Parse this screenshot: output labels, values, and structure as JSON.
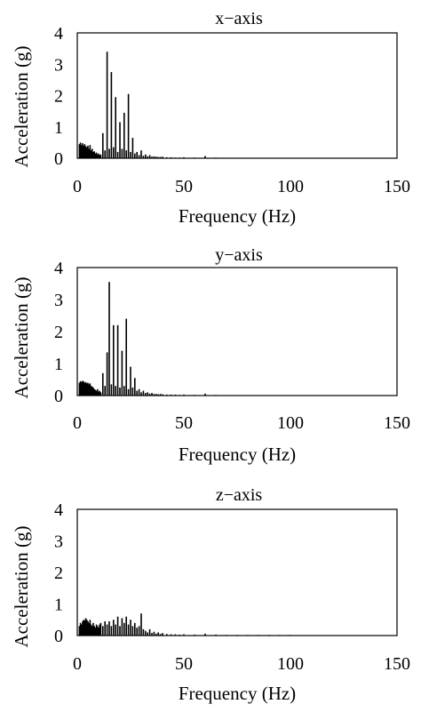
{
  "chart_data": [
    {
      "type": "bar",
      "title": "x−axis",
      "xlabel": "Frequency (Hz)",
      "ylabel": "Acceleration (g)",
      "xlim": [
        0,
        150
      ],
      "ylim": [
        0,
        4
      ],
      "xticks": [
        "0",
        "50",
        "100",
        "150"
      ],
      "yticks": [
        "0",
        "1",
        "2",
        "3",
        "4"
      ],
      "grid": false,
      "color": "#000000",
      "x": [
        1,
        1.5,
        2,
        2.5,
        3,
        3.5,
        4,
        4.5,
        5,
        5.5,
        6,
        6.5,
        7,
        7.5,
        8,
        8.5,
        9,
        9.5,
        10,
        10.5,
        11,
        12,
        13,
        14,
        15,
        16,
        17,
        18,
        19,
        20,
        21,
        22,
        23,
        24,
        25,
        26,
        27,
        28,
        29,
        30,
        31,
        32,
        33,
        34,
        35,
        36,
        37,
        38,
        39,
        40,
        42,
        44,
        46,
        48,
        50,
        55,
        60,
        65,
        70,
        80,
        90,
        100
      ],
      "values": [
        0.45,
        0.5,
        0.42,
        0.48,
        0.4,
        0.45,
        0.38,
        0.35,
        0.4,
        0.3,
        0.42,
        0.25,
        0.3,
        0.2,
        0.22,
        0.15,
        0.18,
        0.12,
        0.15,
        0.1,
        0.12,
        0.8,
        0.25,
        3.4,
        0.3,
        2.75,
        0.35,
        1.95,
        0.2,
        1.15,
        0.3,
        1.45,
        0.25,
        2.05,
        0.2,
        0.65,
        0.15,
        0.2,
        0.1,
        0.25,
        0.08,
        0.12,
        0.06,
        0.1,
        0.05,
        0.06,
        0.05,
        0.04,
        0.04,
        0.05,
        0.03,
        0.03,
        0.02,
        0.02,
        0.03,
        0.02,
        0.07,
        0.02,
        0.01,
        0.01,
        0.01,
        0.01
      ]
    },
    {
      "type": "bar",
      "title": "y−axis",
      "xlabel": "Frequency (Hz)",
      "ylabel": "Acceleration (g)",
      "xlim": [
        0,
        150
      ],
      "ylim": [
        0,
        4
      ],
      "xticks": [
        "0",
        "50",
        "100",
        "150"
      ],
      "yticks": [
        "0",
        "1",
        "2",
        "3",
        "4"
      ],
      "grid": false,
      "color": "#000000",
      "x": [
        1,
        1.5,
        2,
        2.5,
        3,
        3.5,
        4,
        4.5,
        5,
        5.5,
        6,
        6.5,
        7,
        7.5,
        8,
        8.5,
        9,
        9.5,
        10,
        10.5,
        11,
        12,
        13,
        14,
        15,
        16,
        17,
        18,
        19,
        20,
        21,
        22,
        23,
        24,
        25,
        26,
        27,
        28,
        29,
        30,
        31,
        32,
        33,
        34,
        35,
        36,
        37,
        38,
        39,
        40,
        42,
        44,
        46,
        48,
        50,
        55,
        60,
        65,
        70,
        80,
        90,
        100
      ],
      "values": [
        0.4,
        0.45,
        0.42,
        0.46,
        0.44,
        0.4,
        0.42,
        0.38,
        0.4,
        0.35,
        0.38,
        0.3,
        0.28,
        0.25,
        0.2,
        0.18,
        0.15,
        0.2,
        0.12,
        0.15,
        0.1,
        0.7,
        0.3,
        1.35,
        3.55,
        0.35,
        2.2,
        0.3,
        2.2,
        0.25,
        1.4,
        0.3,
        2.4,
        0.2,
        0.9,
        0.25,
        0.55,
        0.15,
        0.2,
        0.1,
        0.15,
        0.08,
        0.1,
        0.06,
        0.08,
        0.05,
        0.05,
        0.04,
        0.05,
        0.04,
        0.03,
        0.03,
        0.03,
        0.02,
        0.03,
        0.02,
        0.06,
        0.02,
        0.01,
        0.01,
        0.01,
        0.01
      ]
    },
    {
      "type": "bar",
      "title": "z−axis",
      "xlabel": "Frequency (Hz)",
      "ylabel": "Acceleration (g)",
      "xlim": [
        0,
        150
      ],
      "ylim": [
        0,
        4
      ],
      "xticks": [
        "0",
        "50",
        "100",
        "150"
      ],
      "yticks": [
        "0",
        "1",
        "2",
        "3",
        "4"
      ],
      "grid": false,
      "color": "#000000",
      "x": [
        1,
        1.5,
        2,
        2.5,
        3,
        3.5,
        4,
        4.5,
        5,
        5.5,
        6,
        6.5,
        7,
        7.5,
        8,
        8.5,
        9,
        9.5,
        10,
        10.5,
        11,
        12,
        13,
        14,
        15,
        16,
        17,
        18,
        19,
        20,
        21,
        22,
        23,
        24,
        25,
        26,
        27,
        28,
        29,
        30,
        31,
        32,
        33,
        34,
        35,
        36,
        37,
        38,
        39,
        40,
        42,
        44,
        46,
        48,
        50,
        55,
        60,
        65,
        70,
        75,
        80,
        85,
        90,
        95,
        100,
        105,
        110
      ],
      "values": [
        0.3,
        0.4,
        0.35,
        0.45,
        0.5,
        0.48,
        0.55,
        0.5,
        0.45,
        0.4,
        0.5,
        0.35,
        0.3,
        0.4,
        0.3,
        0.25,
        0.35,
        0.3,
        0.25,
        0.35,
        0.4,
        0.3,
        0.45,
        0.35,
        0.45,
        0.3,
        0.5,
        0.35,
        0.6,
        0.3,
        0.55,
        0.4,
        0.6,
        0.35,
        0.5,
        0.3,
        0.4,
        0.25,
        0.3,
        0.7,
        0.2,
        0.15,
        0.1,
        0.2,
        0.08,
        0.12,
        0.06,
        0.1,
        0.05,
        0.08,
        0.05,
        0.04,
        0.04,
        0.03,
        0.04,
        0.03,
        0.06,
        0.03,
        0.02,
        0.02,
        0.02,
        0.02,
        0.02,
        0.02,
        0.02,
        0.01,
        0.01
      ]
    }
  ]
}
